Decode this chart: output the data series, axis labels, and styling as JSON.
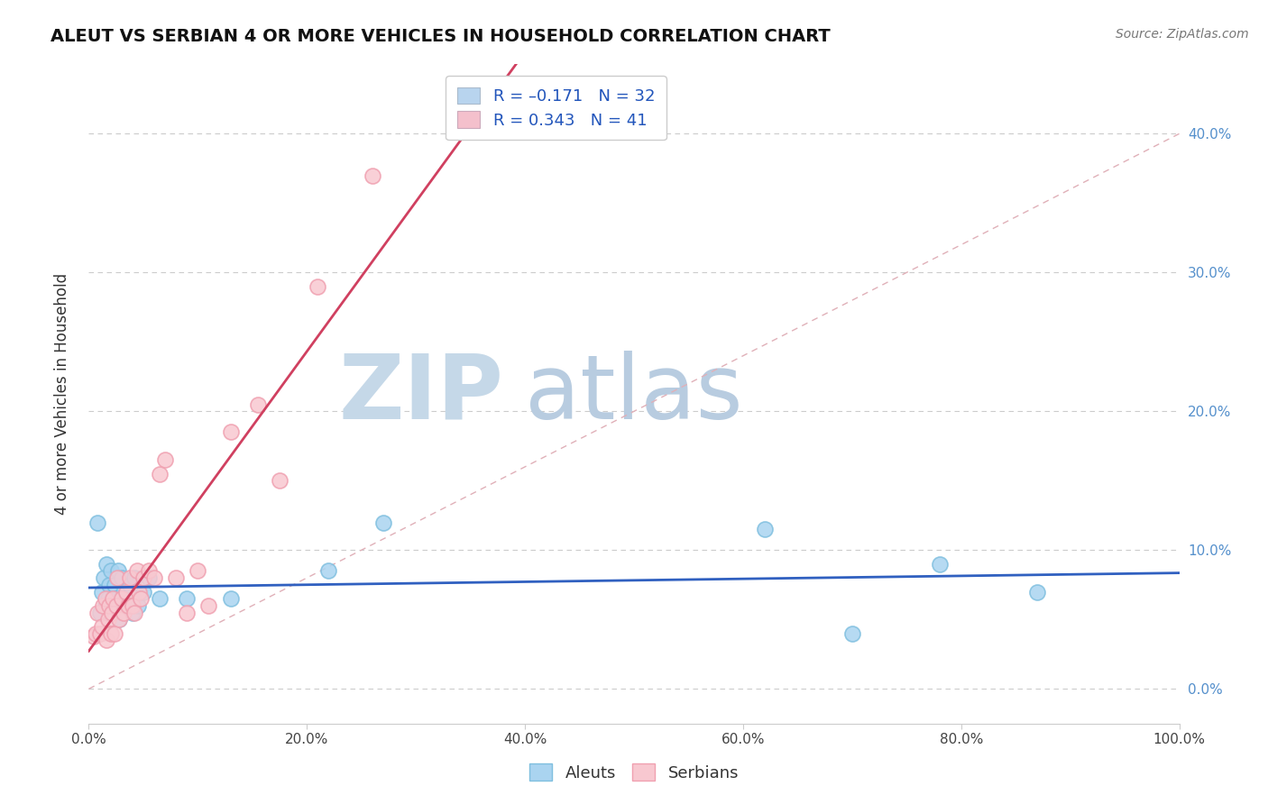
{
  "title": "ALEUT VS SERBIAN 4 OR MORE VEHICLES IN HOUSEHOLD CORRELATION CHART",
  "source_text": "Source: ZipAtlas.com",
  "ylabel": "4 or more Vehicles in Household",
  "xlim": [
    0,
    1.0
  ],
  "ylim": [
    -0.025,
    0.45
  ],
  "xticks": [
    0.0,
    0.2,
    0.4,
    0.6,
    0.8,
    1.0
  ],
  "xtick_labels": [
    "0.0%",
    "20.0%",
    "40.0%",
    "60.0%",
    "80.0%",
    "100.0%"
  ],
  "yticks": [
    0.0,
    0.1,
    0.2,
    0.3,
    0.4
  ],
  "ytick_labels": [
    "0.0%",
    "10.0%",
    "20.0%",
    "30.0%",
    "40.0%"
  ],
  "aleuts_color": "#7fbfdf",
  "serbians_color": "#f0a0b0",
  "aleuts_fill_color": "#aad4f0",
  "serbians_fill_color": "#f8c8d0",
  "aleuts_line_color": "#3060c0",
  "serbians_line_color": "#d04060",
  "diag_line_color": "#e0b0b8",
  "watermark_zip_color": "#c5d8e8",
  "watermark_atlas_color": "#b8cce0",
  "legend_box_color1": "#b8d4ee",
  "legend_box_color2": "#f4c0cc",
  "aleuts_x": [
    0.008,
    0.01,
    0.012,
    0.014,
    0.015,
    0.016,
    0.018,
    0.019,
    0.02,
    0.022,
    0.024,
    0.025,
    0.027,
    0.028,
    0.03,
    0.032,
    0.035,
    0.038,
    0.04,
    0.042,
    0.045,
    0.05,
    0.055,
    0.065,
    0.09,
    0.13,
    0.22,
    0.27,
    0.62,
    0.7,
    0.78,
    0.87
  ],
  "aleuts_y": [
    0.12,
    0.055,
    0.07,
    0.08,
    0.06,
    0.09,
    0.065,
    0.075,
    0.085,
    0.06,
    0.075,
    0.065,
    0.085,
    0.05,
    0.08,
    0.07,
    0.06,
    0.075,
    0.055,
    0.08,
    0.06,
    0.07,
    0.08,
    0.065,
    0.065,
    0.065,
    0.085,
    0.12,
    0.115,
    0.04,
    0.09,
    0.07
  ],
  "serbians_x": [
    0.005,
    0.006,
    0.008,
    0.01,
    0.012,
    0.013,
    0.015,
    0.016,
    0.018,
    0.019,
    0.02,
    0.021,
    0.022,
    0.024,
    0.025,
    0.026,
    0.028,
    0.03,
    0.032,
    0.034,
    0.036,
    0.038,
    0.04,
    0.042,
    0.044,
    0.046,
    0.048,
    0.05,
    0.055,
    0.06,
    0.065,
    0.07,
    0.08,
    0.09,
    0.1,
    0.11,
    0.13,
    0.155,
    0.175,
    0.21,
    0.26
  ],
  "serbians_y": [
    0.038,
    0.04,
    0.055,
    0.04,
    0.045,
    0.06,
    0.065,
    0.035,
    0.05,
    0.06,
    0.04,
    0.055,
    0.065,
    0.04,
    0.06,
    0.08,
    0.05,
    0.065,
    0.055,
    0.07,
    0.06,
    0.08,
    0.06,
    0.055,
    0.085,
    0.07,
    0.065,
    0.08,
    0.085,
    0.08,
    0.155,
    0.165,
    0.08,
    0.055,
    0.085,
    0.06,
    0.185,
    0.205,
    0.15,
    0.29,
    0.37
  ]
}
